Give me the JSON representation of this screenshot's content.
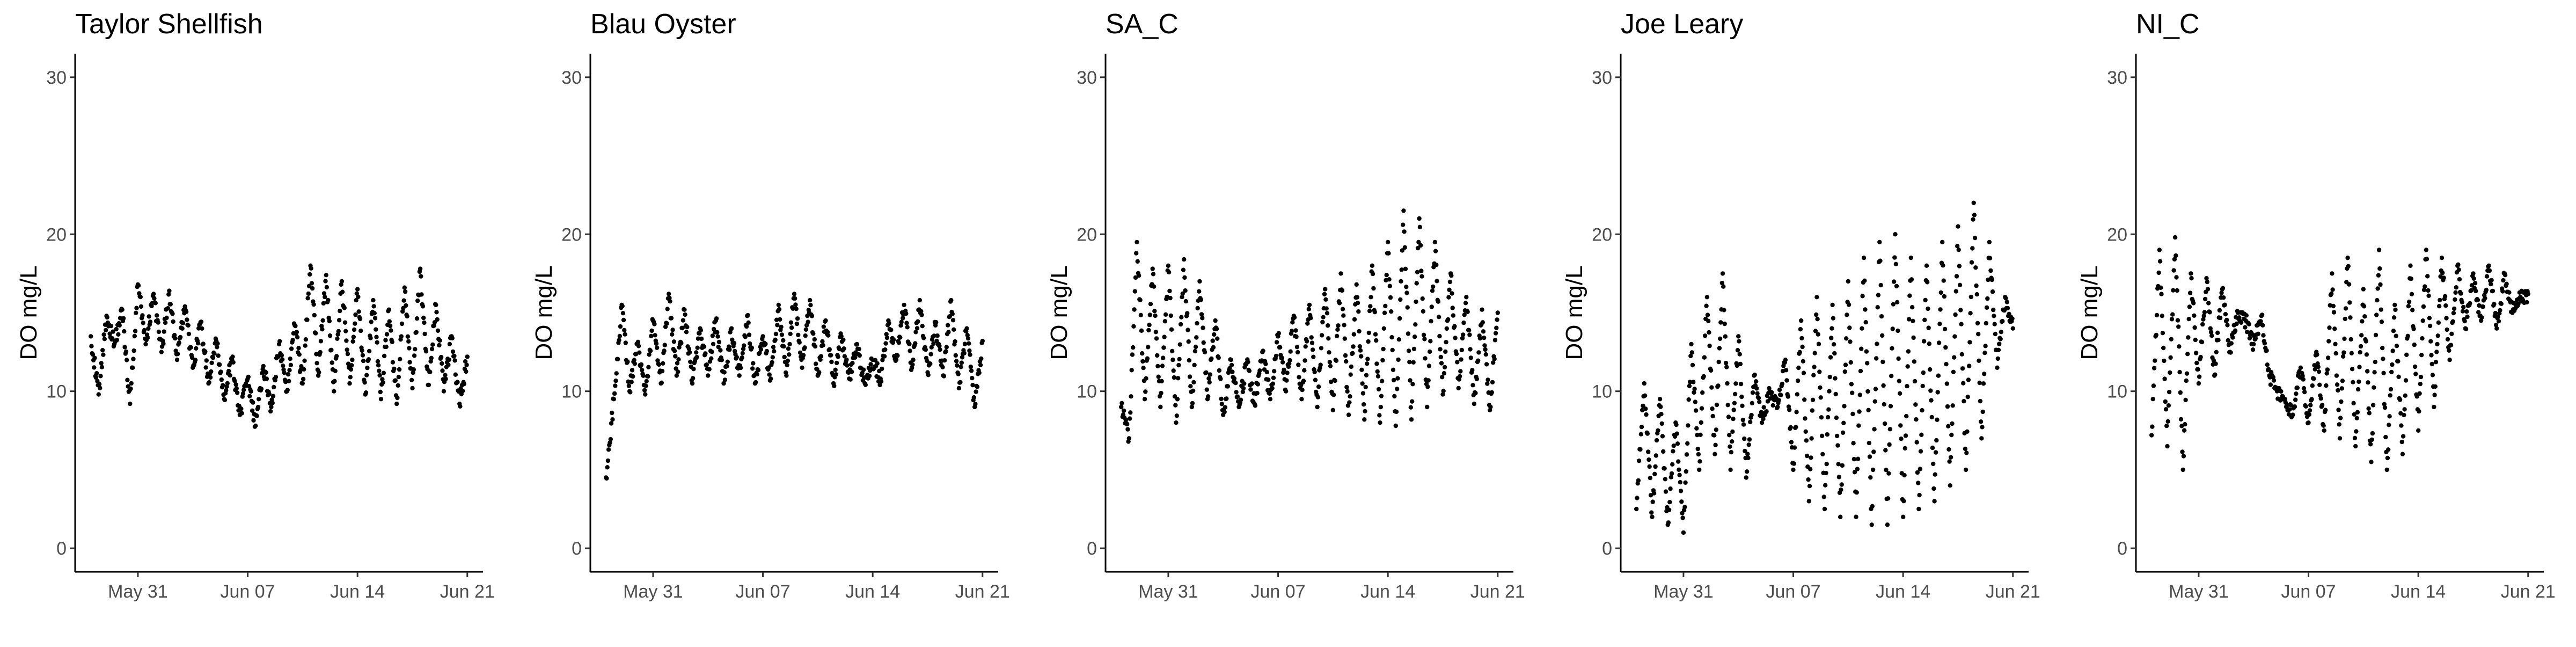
{
  "figure": {
    "point_color": "#000000",
    "background": "#ffffff"
  },
  "chart_data": [
    {
      "type": "scatter",
      "title": "Taylor Shellfish",
      "xlabel": "",
      "ylabel": "DO mg/L",
      "x_ticks": [
        "May 31",
        "Jun 07",
        "Jun 14",
        "Jun 21"
      ],
      "y_ticks": [
        0,
        10,
        20,
        30
      ],
      "xlim": [
        "2023-05-27",
        "2023-06-22"
      ],
      "ylim": [
        -1.5,
        31.5
      ],
      "grid": false,
      "series": [
        {
          "x": [
            "2023-05-28",
            "2023-05-28T12:00",
            "2023-05-29",
            "2023-05-29T12:00",
            "2023-05-30",
            "2023-05-30T12:00",
            "2023-05-31",
            "2023-05-31T12:00",
            "2023-06-01",
            "2023-06-01T12:00",
            "2023-06-02",
            "2023-06-02T12:00",
            "2023-06-03",
            "2023-06-03T12:00",
            "2023-06-04",
            "2023-06-04T12:00",
            "2023-06-05",
            "2023-06-05T12:00",
            "2023-06-06",
            "2023-06-06T12:00",
            "2023-06-07",
            "2023-06-07T12:00",
            "2023-06-08",
            "2023-06-08T12:00",
            "2023-06-09",
            "2023-06-09T12:00",
            "2023-06-10",
            "2023-06-10T12:00",
            "2023-06-11",
            "2023-06-11T12:00",
            "2023-06-12",
            "2023-06-12T12:00",
            "2023-06-13",
            "2023-06-13T12:00",
            "2023-06-14",
            "2023-06-14T12:00",
            "2023-06-15",
            "2023-06-15T12:00",
            "2023-06-16",
            "2023-06-16T12:00",
            "2023-06-17",
            "2023-06-17T12:00",
            "2023-06-18",
            "2023-06-18T12:00",
            "2023-06-19",
            "2023-06-19T12:00",
            "2023-06-20",
            "2023-06-20T12:00",
            "2023-06-21"
          ],
          "y": [
            13.5,
            9.8,
            14.8,
            13.0,
            15.2,
            9.2,
            16.8,
            13.0,
            16.2,
            12.5,
            16.4,
            12.0,
            15.4,
            11.5,
            14.4,
            10.5,
            13.2,
            9.5,
            12.0,
            8.5,
            10.8,
            7.8,
            11.6,
            9.0,
            13.0,
            10.0,
            14.2,
            10.5,
            18.0,
            11.0,
            17.4,
            10.0,
            17.0,
            10.5,
            16.5,
            9.8,
            15.8,
            9.5,
            15.2,
            9.2,
            16.6,
            10.2,
            17.8,
            10.4,
            15.5,
            10.0,
            13.5,
            9.2,
            12.2
          ]
        }
      ]
    },
    {
      "type": "scatter",
      "title": "Blau Oyster",
      "xlabel": "",
      "ylabel": "DO mg/L",
      "x_ticks": [
        "May 31",
        "Jun 07",
        "Jun 14",
        "Jun 21"
      ],
      "y_ticks": [
        0,
        10,
        20,
        30
      ],
      "xlim": [
        "2023-05-27",
        "2023-06-22"
      ],
      "ylim": [
        -1.5,
        31.5
      ],
      "grid": false,
      "series": [
        {
          "x": [
            "2023-05-28",
            "2023-05-28T12:00",
            "2023-05-29",
            "2023-05-29T12:00",
            "2023-05-30",
            "2023-05-30T12:00",
            "2023-05-31",
            "2023-05-31T12:00",
            "2023-06-01",
            "2023-06-01T12:00",
            "2023-06-02",
            "2023-06-02T12:00",
            "2023-06-03",
            "2023-06-03T12:00",
            "2023-06-04",
            "2023-06-04T12:00",
            "2023-06-05",
            "2023-06-05T12:00",
            "2023-06-06",
            "2023-06-06T12:00",
            "2023-06-07",
            "2023-06-07T12:00",
            "2023-06-08",
            "2023-06-08T12:00",
            "2023-06-09",
            "2023-06-09T12:00",
            "2023-06-10",
            "2023-06-10T12:00",
            "2023-06-11",
            "2023-06-11T12:00",
            "2023-06-12",
            "2023-06-12T12:00",
            "2023-06-13",
            "2023-06-13T12:00",
            "2023-06-14",
            "2023-06-14T12:00",
            "2023-06-15",
            "2023-06-15T12:00",
            "2023-06-16",
            "2023-06-16T12:00",
            "2023-06-17",
            "2023-06-17T12:00",
            "2023-06-18",
            "2023-06-18T12:00",
            "2023-06-19",
            "2023-06-19T12:00",
            "2023-06-20",
            "2023-06-20T12:00",
            "2023-06-21"
          ],
          "y": [
            4.5,
            9.5,
            15.5,
            10.0,
            13.0,
            9.8,
            14.5,
            10.5,
            16.2,
            11.0,
            15.2,
            10.5,
            14.0,
            11.0,
            14.5,
            10.5,
            14.0,
            11.0,
            14.8,
            10.5,
            13.5,
            10.8,
            15.5,
            11.0,
            16.2,
            11.5,
            15.8,
            11.0,
            14.5,
            10.5,
            13.5,
            10.8,
            13.0,
            10.5,
            12.0,
            10.8,
            14.5,
            12.0,
            15.5,
            11.5,
            15.8,
            11.2,
            14.2,
            11.0,
            15.8,
            10.2,
            14.0,
            9.0,
            13.2
          ]
        }
      ]
    },
    {
      "type": "scatter",
      "title": "SA_C",
      "xlabel": "",
      "ylabel": "DO mg/L",
      "x_ticks": [
        "May 31",
        "Jun 07",
        "Jun 14",
        "Jun 21"
      ],
      "y_ticks": [
        0,
        10,
        20,
        30
      ],
      "xlim": [
        "2023-05-27",
        "2023-06-22"
      ],
      "ylim": [
        -1.5,
        31.5
      ],
      "grid": false,
      "series": [
        {
          "x": [
            "2023-05-28",
            "2023-05-28T12:00",
            "2023-05-29",
            "2023-05-29T12:00",
            "2023-05-30",
            "2023-05-30T12:00",
            "2023-05-31",
            "2023-05-31T12:00",
            "2023-06-01",
            "2023-06-01T12:00",
            "2023-06-02",
            "2023-06-02T12:00",
            "2023-06-03",
            "2023-06-03T12:00",
            "2023-06-04",
            "2023-06-04T12:00",
            "2023-06-05",
            "2023-06-05T12:00",
            "2023-06-06",
            "2023-06-06T12:00",
            "2023-06-07",
            "2023-06-07T12:00",
            "2023-06-08",
            "2023-06-08T12:00",
            "2023-06-09",
            "2023-06-09T12:00",
            "2023-06-10",
            "2023-06-10T12:00",
            "2023-06-11",
            "2023-06-11T12:00",
            "2023-06-12",
            "2023-06-12T12:00",
            "2023-06-13",
            "2023-06-13T12:00",
            "2023-06-14",
            "2023-06-14T12:00",
            "2023-06-15",
            "2023-06-15T12:00",
            "2023-06-16",
            "2023-06-16T12:00",
            "2023-06-17",
            "2023-06-17T12:00",
            "2023-06-18",
            "2023-06-18T12:00",
            "2023-06-19",
            "2023-06-19T12:00",
            "2023-06-20",
            "2023-06-20T12:00",
            "2023-06-21"
          ],
          "y": [
            9.0,
            7.0,
            19.5,
            9.5,
            17.8,
            9.0,
            18.0,
            8.0,
            18.4,
            9.0,
            17.0,
            9.5,
            14.5,
            8.5,
            12.0,
            9.0,
            11.8,
            9.2,
            12.5,
            9.5,
            13.5,
            10.0,
            14.8,
            9.5,
            15.5,
            9.0,
            16.5,
            8.8,
            17.5,
            8.5,
            16.8,
            8.2,
            18.0,
            8.0,
            19.5,
            7.8,
            21.5,
            8.2,
            21.0,
            9.0,
            19.5,
            9.8,
            17.5,
            10.2,
            16.0,
            9.2,
            15.2,
            8.8,
            15.0
          ]
        }
      ]
    },
    {
      "type": "scatter",
      "title": "Joe Leary",
      "xlabel": "",
      "ylabel": "DO mg/L",
      "x_ticks": [
        "May 31",
        "Jun 07",
        "Jun 14",
        "Jun 21"
      ],
      "y_ticks": [
        0,
        10,
        20,
        30
      ],
      "xlim": [
        "2023-05-27",
        "2023-06-22"
      ],
      "ylim": [
        -1.5,
        31.5
      ],
      "grid": false,
      "series": [
        {
          "x": [
            "2023-05-28",
            "2023-05-28T12:00",
            "2023-05-29",
            "2023-05-29T12:00",
            "2023-05-30",
            "2023-05-30T12:00",
            "2023-05-31",
            "2023-05-31T12:00",
            "2023-06-01",
            "2023-06-01T12:00",
            "2023-06-02",
            "2023-06-02T12:00",
            "2023-06-03",
            "2023-06-03T12:00",
            "2023-06-04",
            "2023-06-04T12:00",
            "2023-06-05",
            "2023-06-05T12:00",
            "2023-06-06",
            "2023-06-06T12:00",
            "2023-06-07",
            "2023-06-07T12:00",
            "2023-06-08",
            "2023-06-08T12:00",
            "2023-06-09",
            "2023-06-09T12:00",
            "2023-06-10",
            "2023-06-10T12:00",
            "2023-06-11",
            "2023-06-11T12:00",
            "2023-06-12",
            "2023-06-12T12:00",
            "2023-06-13",
            "2023-06-13T12:00",
            "2023-06-14",
            "2023-06-14T12:00",
            "2023-06-15",
            "2023-06-15T12:00",
            "2023-06-16",
            "2023-06-16T12:00",
            "2023-06-17",
            "2023-06-17T12:00",
            "2023-06-18",
            "2023-06-18T12:00",
            "2023-06-19",
            "2023-06-19T12:00",
            "2023-06-20",
            "2023-06-20T12:00",
            "2023-06-21"
          ],
          "y": [
            2.5,
            10.5,
            2.0,
            9.5,
            1.5,
            8.0,
            1.0,
            13.0,
            5.0,
            16.0,
            6.0,
            17.5,
            5.0,
            13.5,
            4.5,
            11.0,
            8.0,
            10.0,
            9.0,
            12.0,
            5.0,
            14.5,
            3.0,
            16.0,
            2.5,
            15.5,
            2.0,
            17.0,
            2.0,
            18.5,
            1.5,
            19.5,
            1.5,
            20.0,
            2.0,
            18.5,
            2.5,
            18.0,
            3.0,
            19.5,
            4.0,
            20.5,
            5.0,
            22.0,
            7.0,
            19.5,
            11.5,
            16.0,
            14.0
          ]
        }
      ]
    },
    {
      "type": "scatter",
      "title": "NI_C",
      "xlabel": "",
      "ylabel": "DO mg/L",
      "x_ticks": [
        "May 31",
        "Jun 07",
        "Jun 14",
        "Jun 21"
      ],
      "y_ticks": [
        0,
        10,
        20,
        30
      ],
      "xlim": [
        "2023-05-27",
        "2023-06-22"
      ],
      "ylim": [
        -1.5,
        31.5
      ],
      "grid": false,
      "series": [
        {
          "x": [
            "2023-05-28",
            "2023-05-28T12:00",
            "2023-05-29",
            "2023-05-29T12:00",
            "2023-05-30",
            "2023-05-30T12:00",
            "2023-05-31",
            "2023-05-31T12:00",
            "2023-06-01",
            "2023-06-01T12:00",
            "2023-06-02",
            "2023-06-02T12:00",
            "2023-06-03",
            "2023-06-03T12:00",
            "2023-06-04",
            "2023-06-04T12:00",
            "2023-06-05",
            "2023-06-05T12:00",
            "2023-06-06",
            "2023-06-06T12:00",
            "2023-06-07",
            "2023-06-07T12:00",
            "2023-06-08",
            "2023-06-08T12:00",
            "2023-06-09",
            "2023-06-09T12:00",
            "2023-06-10",
            "2023-06-10T12:00",
            "2023-06-11",
            "2023-06-11T12:00",
            "2023-06-12",
            "2023-06-12T12:00",
            "2023-06-13",
            "2023-06-13T12:00",
            "2023-06-14",
            "2023-06-14T12:00",
            "2023-06-15",
            "2023-06-15T12:00",
            "2023-06-16",
            "2023-06-16T12:00",
            "2023-06-17",
            "2023-06-17T12:00",
            "2023-06-18",
            "2023-06-18T12:00",
            "2023-06-19",
            "2023-06-19T12:00",
            "2023-06-20",
            "2023-06-20T12:00",
            "2023-06-21"
          ],
          "y": [
            7.2,
            19.0,
            6.5,
            19.8,
            5.0,
            17.5,
            10.5,
            17.2,
            11.0,
            16.5,
            12.5,
            15.0,
            14.5,
            13.0,
            14.8,
            11.0,
            10.0,
            9.5,
            8.5,
            11.5,
            8.0,
            12.5,
            7.5,
            17.5,
            7.0,
            18.5,
            6.5,
            16.5,
            5.5,
            19.0,
            5.0,
            15.5,
            6.0,
            18.0,
            7.5,
            19.0,
            9.0,
            18.5,
            12.0,
            18.0,
            14.0,
            17.5,
            14.5,
            18.0,
            14.0,
            17.5,
            15.0,
            16.0,
            16.2
          ]
        }
      ]
    }
  ]
}
